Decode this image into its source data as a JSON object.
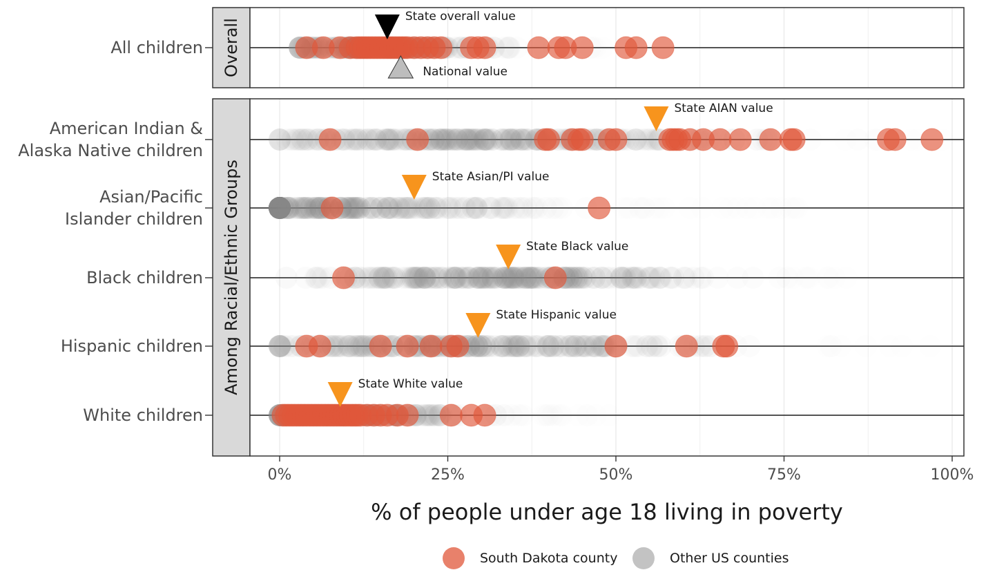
{
  "chart_data": {
    "type": "scatter",
    "title": "",
    "xlabel": "% of people under age 18 living in poverty",
    "ylabel": "",
    "xlim": [
      0,
      100
    ],
    "x_ticks": [
      0,
      25,
      50,
      75,
      100
    ],
    "x_tick_labels": [
      "0%",
      "25%",
      "50%",
      "75%",
      "100%"
    ],
    "grid": true,
    "legend_placement": "bottom",
    "colors": {
      "sd_county": "#E0573A",
      "other_county": "#BDBDBD",
      "state_marker": "#F7941D",
      "state_overall_marker": "#000000",
      "national_marker": "#BDBDBD"
    },
    "legend": [
      {
        "key": "sd",
        "label": "South Dakota county"
      },
      {
        "key": "other",
        "label": "Other US counties"
      }
    ],
    "panels": [
      {
        "strip": "Overall",
        "rows": [
          {
            "label_lines": [
              "All children"
            ],
            "sd_counties": [
              4,
              6.5,
              9,
              10.5,
              11.5,
              12,
              12.5,
              13,
              13.5,
              14,
              14.5,
              15,
              15.5,
              16,
              16.5,
              17,
              17.5,
              18,
              18.5,
              19,
              20,
              21,
              22,
              23,
              24,
              28.5,
              29.5,
              30.5,
              38.5,
              41.5,
              42.5,
              45,
              51.5,
              53,
              57
            ],
            "other_range": [
              3,
              50
            ],
            "other_density_center": 14,
            "state_value": 16,
            "state_label": "State overall value",
            "national_value": 18,
            "national_label": "National value"
          }
        ]
      },
      {
        "strip": "Among Racial/Ethnic Groups",
        "rows": [
          {
            "label_lines": [
              "American Indian &",
              "Alaska Native children"
            ],
            "sd_counties": [
              7.5,
              20.5,
              39.5,
              40,
              43.5,
              44.5,
              45,
              49,
              50,
              58,
              58.5,
              59,
              59.5,
              61,
              63,
              65.5,
              68.5,
              73,
              76,
              76.5,
              90.5,
              91.5,
              97
            ],
            "other_range": [
              0,
              100
            ],
            "other_density_center": 30,
            "state_value": 56,
            "state_label": "State AIAN value"
          },
          {
            "label_lines": [
              "Asian/Pacific",
              "Islander children"
            ],
            "sd_counties": [
              7.8,
              47.5
            ],
            "other_range": [
              0,
              80
            ],
            "other_density_center": 5,
            "state_value": 20,
            "state_label": "State Asian/PI value"
          },
          {
            "label_lines": [
              "Black children"
            ],
            "sd_counties": [
              9.5,
              41
            ],
            "other_range": [
              1,
              85
            ],
            "other_density_center": 33,
            "state_value": 34,
            "state_label": "State Black value"
          },
          {
            "label_lines": [
              "Hispanic children"
            ],
            "sd_counties": [
              4,
              6,
              15,
              19,
              22.5,
              25.5,
              26.5,
              50,
              60.5,
              66,
              66.5
            ],
            "other_range": [
              0,
              100
            ],
            "other_density_center": 27,
            "state_value": 29.5,
            "state_label": "State Hispanic value"
          },
          {
            "label_lines": [
              "White children"
            ],
            "sd_counties": [
              0.5,
              1,
              1.5,
              2,
              2.5,
              3,
              3.5,
              4,
              4.5,
              5,
              5.5,
              6,
              6.5,
              7,
              7.5,
              8,
              8.5,
              9,
              9.5,
              10,
              10.5,
              11,
              11.5,
              12,
              13,
              14,
              15,
              16,
              17.5,
              19,
              25.5,
              28.5,
              30.5
            ],
            "other_range": [
              0,
              50
            ],
            "other_density_center": 10,
            "state_value": 9,
            "state_label": "State White value"
          }
        ]
      }
    ]
  }
}
